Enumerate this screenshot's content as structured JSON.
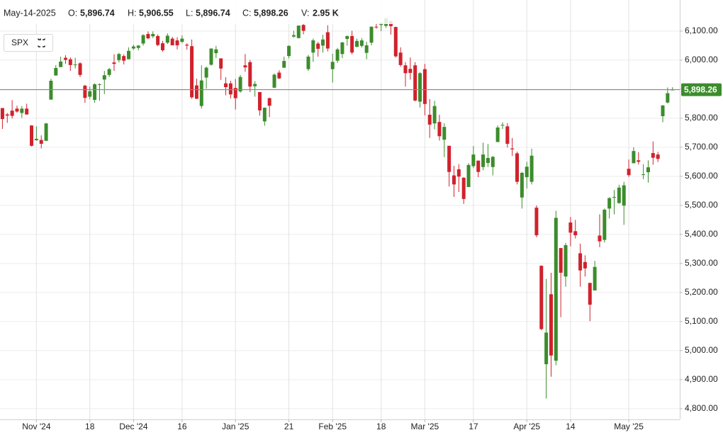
{
  "header": {
    "date": "May-14-2025",
    "fields": [
      {
        "key": "O:",
        "value": "5,896.74"
      },
      {
        "key": "H:",
        "value": "5,906.55"
      },
      {
        "key": "L:",
        "value": "5,896.74"
      },
      {
        "key": "C:",
        "value": "5,898.26"
      },
      {
        "key": "V:",
        "value": "2.95 K"
      }
    ]
  },
  "symbol": "SPX",
  "chart_data": {
    "type": "candlestick",
    "up_color": "#3c8c2c",
    "down_color": "#d0222c",
    "grid": true,
    "xlim": [
      -0.5,
      139.5
    ],
    "ylim": [
      4763,
      6207
    ],
    "xticks": [
      {
        "value": 7,
        "label": "Nov '24"
      },
      {
        "value": 18,
        "label": "18"
      },
      {
        "value": 27,
        "label": "Dec '24"
      },
      {
        "value": 37,
        "label": "16"
      },
      {
        "value": 48,
        "label": "Jan '25"
      },
      {
        "value": 59,
        "label": "21"
      },
      {
        "value": 68,
        "label": "Feb '25"
      },
      {
        "value": 78,
        "label": "18"
      },
      {
        "value": 87,
        "label": "Mar '25"
      },
      {
        "value": 97,
        "label": "17"
      },
      {
        "value": 108,
        "label": "Apr '25"
      },
      {
        "value": 117,
        "label": "14"
      },
      {
        "value": 129,
        "label": "May '25"
      }
    ],
    "yticks": [
      {
        "value": 4800,
        "label": "4,800.00"
      },
      {
        "value": 4900,
        "label": "4,900.00"
      },
      {
        "value": 5000,
        "label": "5,000.00"
      },
      {
        "value": 5100,
        "label": "5,100.00"
      },
      {
        "value": 5200,
        "label": "5,200.00"
      },
      {
        "value": 5300,
        "label": "5,300.00"
      },
      {
        "value": 5400,
        "label": "5,400.00"
      },
      {
        "value": 5500,
        "label": "5,500.00"
      },
      {
        "value": 5600,
        "label": "5,600.00"
      },
      {
        "value": 5700,
        "label": "5,700.00"
      },
      {
        "value": 5800,
        "label": "5,800.00"
      },
      {
        "value": 5900,
        "label": "5,900.00"
      },
      {
        "value": 6000,
        "label": "6,000.00"
      },
      {
        "value": 6100,
        "label": "6,100.00"
      }
    ],
    "last_price": {
      "value": 5898.26,
      "label": "5,898.26"
    },
    "open": [
      5835,
      5813,
      5826,
      5833,
      5818,
      5833,
      5775,
      5724,
      5725,
      5722,
      5864,
      5947,
      5976,
      6008,
      6003,
      5985,
      5989,
      5912,
      5874,
      5863,
      5917,
      5933,
      5949,
      5992,
      6000,
      6014,
      6003,
      6040,
      6042,
      6057,
      6090,
      6082,
      6083,
      6058,
      6060,
      6074,
      6068,
      6063,
      6053,
      6048,
      5913,
      5842,
      5940,
      5984,
      6024,
      6006,
      5920,
      5920,
      5904,
      5892,
      5982,
      5993,
      5910,
      5890,
      5789,
      5869,
      5905,
      5957,
      5974,
      6014,
      6081,
      6076,
      6121,
      5969,
      6026,
      6057,
      6050,
      6096,
      5969,
      5998,
      6021,
      6073,
      6083,
      6046,
      6049,
      6025,
      6060,
      6115,
      6121,
      6118,
      6135,
      6114,
      6026,
      5982,
      5970,
      5982,
      5857,
      5969,
      5812,
      5782,
      5787,
      5726,
      5705,
      5603,
      5624,
      5595,
      5563,
      5635,
      5654,
      5632,
      5646,
      5632,
      5718,
      5775,
      5772,
      5696,
      5679,
      5527,
      5597,
      5581,
      5492,
      5292,
      4953,
      5194,
      4965,
      5353,
      5255,
      5441,
      5411,
      5335,
      5305,
      5233,
      5207,
      5396,
      5381,
      5489,
      5529,
      5508,
      5499,
      5626,
      5645,
      5655,
      5606,
      5614,
      5680,
      5675,
      5807,
      5854,
      5896.74
    ],
    "high": [
      5835,
      5818,
      5862,
      5843,
      5842,
      5850,
      5776,
      5772,
      5741,
      5784,
      5936,
      5983,
      6012,
      6017,
      6009,
      6008,
      5993,
      5915,
      5909,
      5920,
      5920,
      5963,
      5973,
      6020,
      6025,
      6020,
      6044,
      6053,
      6052,
      6089,
      6099,
      6099,
      6088,
      6066,
      6092,
      6080,
      6079,
      6085,
      6058,
      6071,
      5936,
      5982,
      5978,
      6040,
      6049,
      6006,
      5941,
      5929,
      5935,
      5949,
      6021,
      6001,
      5928,
      5890,
      5837,
      5871,
      5954,
      5965,
      6012,
      6051,
      6101,
      6119,
      6128,
      6018,
      6074,
      6063,
      6087,
      6120,
      6022,
      6042,
      6062,
      6084,
      6101,
      6074,
      6076,
      6063,
      6116,
      6128,
      6129,
      6147,
      6135,
      6115,
      6044,
      5993,
      6009,
      5993,
      5959,
      5987,
      5866,
      5860,
      5812,
      5783,
      5705,
      5636,
      5642,
      5597,
      5645,
      5704,
      5654,
      5716,
      5711,
      5670,
      5775,
      5786,
      5783,
      5732,
      5685,
      5615,
      5650,
      5695,
      5500,
      5293,
      5247,
      5268,
      5481,
      5353,
      5371,
      5460,
      5450,
      5368,
      5328,
      5233,
      5309,
      5469,
      5489,
      5528,
      5553,
      5571,
      5581,
      5658,
      5700,
      5683,
      5642,
      5655,
      5720,
      5684,
      5845,
      5906,
      5906.55
    ],
    "low": [
      5763,
      5784,
      5799,
      5819,
      5801,
      5812,
      5703,
      5723,
      5696,
      5722,
      5864,
      5947,
      5976,
      5987,
      5963,
      5971,
      5942,
      5853,
      5865,
      5853,
      5860,
      5883,
      5942,
      5963,
      5992,
      5985,
      6003,
      6035,
      6034,
      6050,
      6072,
      6076,
      6048,
      6029,
      6055,
      6051,
      6037,
      6059,
      6036,
      5867,
      5866,
      5833,
      5902,
      5981,
      6007,
      5932,
      5879,
      5868,
      5830,
      5888,
      5960,
      5890,
      5874,
      5809,
      5774,
      5804,
      5905,
      5935,
      5973,
      6006,
      6077,
      6075,
      6089,
      5963,
      5994,
      6012,
      6026,
      6030,
      5923,
      5990,
      6007,
      6050,
      6020,
      6044,
      6043,
      6003,
      6051,
      6108,
      6100,
      6111,
      6088,
      6009,
      5977,
      5909,
      5933,
      5858,
      5837,
      5810,
      5732,
      5762,
      5723,
      5666,
      5565,
      5529,
      5546,
      5505,
      5563,
      5628,
      5597,
      5621,
      5632,
      5603,
      5718,
      5763,
      5699,
      5670,
      5572,
      5489,
      5558,
      5572,
      5390,
      5070,
      4835,
      4910,
      4950,
      5115,
      5220,
      5359,
      5386,
      5220,
      5255,
      5101,
      5207,
      5356,
      5372,
      5455,
      5469,
      5505,
      5433,
      5598,
      5645,
      5641,
      5590,
      5578,
      5640,
      5649,
      5786,
      5851,
      5896.74
    ],
    "close": [
      5797,
      5809,
      5808,
      5823,
      5833,
      5813,
      5705,
      5729,
      5712,
      5782,
      5929,
      5973,
      5995,
      6001,
      5983,
      5985,
      5949,
      5870,
      5893,
      5917,
      5917,
      5948,
      5969,
      5987,
      6021,
      5998,
      6032,
      6047,
      6050,
      6086,
      6075,
      6090,
      6052,
      6034,
      6084,
      6051,
      6051,
      6074,
      6050,
      5872,
      5867,
      5930,
      5974,
      6040,
      6037,
      5971,
      5907,
      5882,
      5869,
      5942,
      5975,
      5909,
      5918,
      5827,
      5836,
      5843,
      5950,
      5937,
      5997,
      6049,
      6086,
      6119,
      6101,
      6012,
      6068,
      6039,
      6071,
      6040,
      5994,
      6037,
      6061,
      6083,
      6026,
      6066,
      6068,
      6051,
      6115,
      6114,
      6129,
      6144,
      6117,
      6013,
      5983,
      5955,
      5956,
      5861,
      5955,
      5849,
      5778,
      5842,
      5738,
      5770,
      5615,
      5572,
      5599,
      5522,
      5639,
      5675,
      5615,
      5675,
      5663,
      5667,
      5768,
      5777,
      5712,
      5693,
      5581,
      5612,
      5633,
      5671,
      5397,
      5074,
      5062,
      4983,
      5457,
      5268,
      5363,
      5406,
      5397,
      5276,
      5283,
      5158,
      5288,
      5376,
      5485,
      5525,
      5529,
      5561,
      5569,
      5604,
      5687,
      5650,
      5607,
      5631,
      5664,
      5660,
      5844,
      5886,
      5898.26
    ]
  }
}
